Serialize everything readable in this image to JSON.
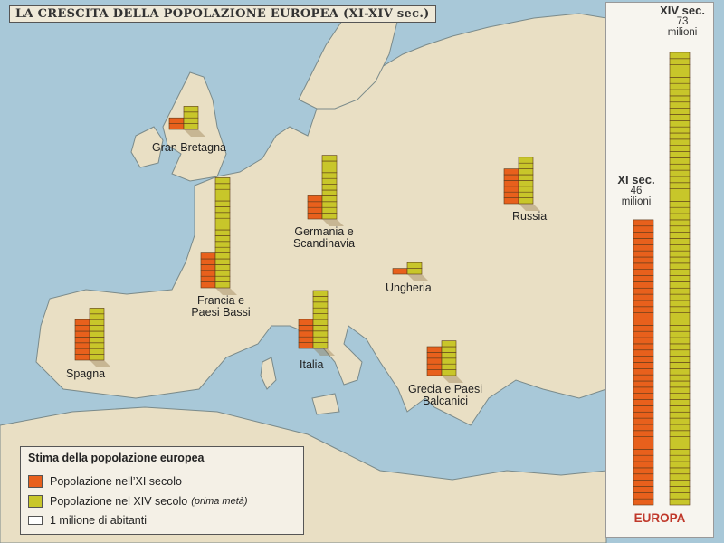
{
  "title": "LA CRESCITA DELLA POPOLAZIONE EUROPEA (XI-XIV sec.)",
  "colors": {
    "xi": "#e8601c",
    "xiv": "#c8c62a",
    "sea": "#a8c8d8",
    "land": "#e9dfc4"
  },
  "legend": {
    "title": "Stima della popolazione europea",
    "xi_label": "Popolazione nell’XI secolo",
    "xiv_label": "Popolazione nel XIV secolo",
    "xiv_note": "(prima metà)",
    "unit_label": "1 milione di abitanti"
  },
  "europa_panel": {
    "xi_heading": "XI sec.",
    "xi_value": "46",
    "xi_unit": "milioni",
    "xiv_heading": "XIV sec.",
    "xiv_value": "73",
    "xiv_unit": "milioni",
    "label": "EUROPA"
  },
  "chart_data": {
    "type": "bar",
    "title": "LA CRESCITA DELLA POPOLAZIONE EUROPEA (XI-XIV sec.)",
    "unit": "1 milione di abitanti",
    "series": [
      {
        "name": "Popolazione nell’XI secolo",
        "color": "#e8601c"
      },
      {
        "name": "Popolazione nel XIV secolo (prima metà)",
        "color": "#c8c62a"
      }
    ],
    "regions": [
      {
        "id": "gran-bretagna",
        "label": "Gran Bretagna",
        "xi": 2,
        "xiv": 4
      },
      {
        "id": "germania",
        "label": "Germania e Scandinavia",
        "xi": 4,
        "xiv": 11
      },
      {
        "id": "russia",
        "label": "Russia",
        "xi": 6,
        "xiv": 8
      },
      {
        "id": "francia",
        "label": "Francia e Paesi Bassi",
        "xi": 6,
        "xiv": 19
      },
      {
        "id": "ungheria",
        "label": "Ungheria",
        "xi": 1,
        "xiv": 2
      },
      {
        "id": "spagna",
        "label": "Spagna",
        "xi": 7,
        "xiv": 9
      },
      {
        "id": "italia",
        "label": "Italia",
        "xi": 5,
        "xiv": 10
      },
      {
        "id": "grecia",
        "label": "Grecia e Paesi Balcanici",
        "xi": 5,
        "xiv": 6
      }
    ],
    "totals": {
      "label": "EUROPA",
      "xi": 46,
      "xiv": 73
    }
  }
}
